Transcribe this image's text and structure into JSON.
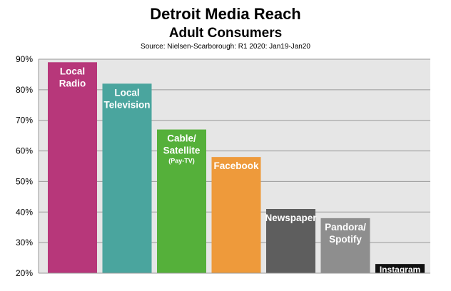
{
  "chart_data": {
    "type": "bar",
    "title": "Detroit Media Reach",
    "subtitle": "Adult Consumers",
    "source": "Source: Nielsen-Scarborough: R1 2020: Jan19-Jan20",
    "ylim": [
      20,
      90
    ],
    "y_ticks": [
      20,
      30,
      40,
      50,
      60,
      70,
      80,
      90
    ],
    "y_tick_labels": [
      "20%",
      "30%",
      "40%",
      "50%",
      "60%",
      "70%",
      "80%",
      "90%"
    ],
    "grid": "horizontal",
    "plot_background": "#e6e6e6",
    "bars": [
      {
        "lines": [
          "Local",
          "Radio"
        ],
        "sub": "",
        "value": 89,
        "color": "#b7377a"
      },
      {
        "lines": [
          "Local",
          "Television"
        ],
        "sub": "",
        "value": 82,
        "color": "#4aa59e"
      },
      {
        "lines": [
          "Cable/",
          "Satellite"
        ],
        "sub": "(Pay-TV)",
        "value": 67,
        "color": "#55b03a"
      },
      {
        "lines": [
          "Facebook"
        ],
        "sub": "",
        "value": 58,
        "color": "#ee9a3b"
      },
      {
        "lines": [
          "Newspaper"
        ],
        "sub": "",
        "value": 41,
        "color": "#5e5e5e"
      },
      {
        "lines": [
          "Pandora/",
          "Spotify"
        ],
        "sub": "",
        "value": 38,
        "color": "#8e8e8e"
      },
      {
        "lines": [
          "Instagram"
        ],
        "sub": "",
        "value": 23,
        "color": "#111111"
      }
    ]
  }
}
